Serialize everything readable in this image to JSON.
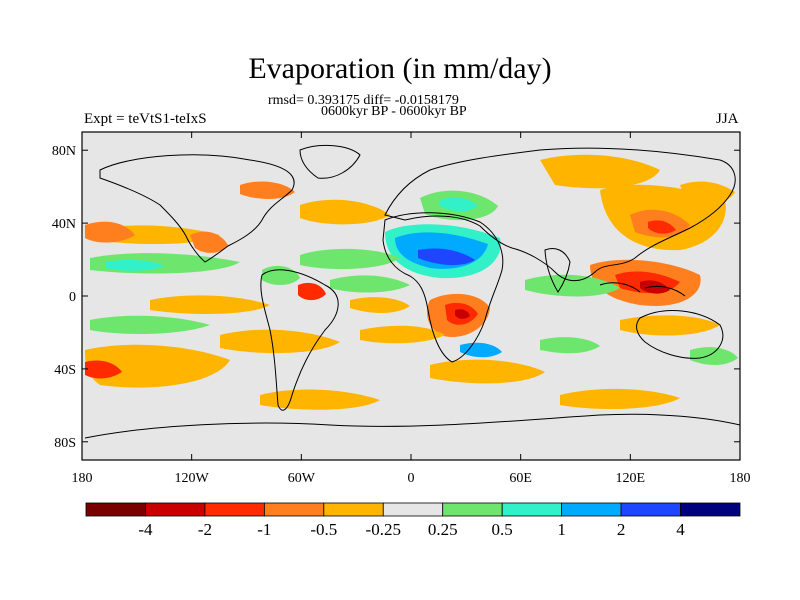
{
  "title": "Evaporation (in mm/day)",
  "stats_line": "rmsd= 0.393175 diff= -0.0158179",
  "period_line": "0600kyr BP - 0600kyr BP",
  "experiment": "Expt = teVtS1-teIxS",
  "season": "JJA",
  "lat_ticks": [
    "80N",
    "40N",
    "0",
    "40S",
    "80S"
  ],
  "lon_ticks": [
    "180",
    "120W",
    "60W",
    "0",
    "60E",
    "120E",
    "180"
  ],
  "colorbar": {
    "labels": [
      "-4",
      "-2",
      "-1",
      "-0.5",
      "-0.25",
      "0.25",
      "0.5",
      "1",
      "2",
      "4"
    ],
    "colors": [
      "#7a0000",
      "#c80000",
      "#ff2a00",
      "#ff7f1e",
      "#ffb400",
      "#e6e6e6",
      "#6ee66e",
      "#32f0c8",
      "#00aaff",
      "#1e46ff",
      "#00007f"
    ]
  },
  "background_color": "#e6e6e6"
}
